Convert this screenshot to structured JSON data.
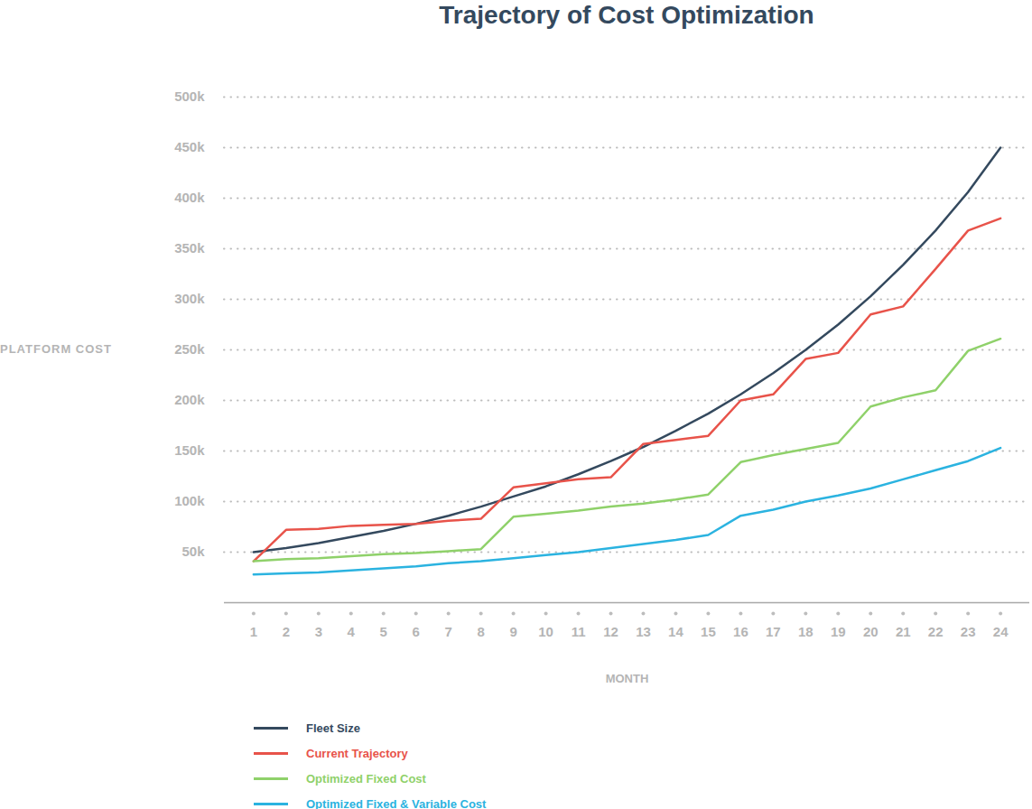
{
  "chart_data": {
    "type": "line",
    "title": "Trajectory of Cost Optimization",
    "y_label": "PLATFORM COST",
    "x_label": "MONTH",
    "x": [
      1,
      2,
      3,
      4,
      5,
      6,
      7,
      8,
      9,
      10,
      11,
      12,
      13,
      14,
      15,
      16,
      17,
      18,
      19,
      20,
      21,
      22,
      23,
      24
    ],
    "xlim": [
      0.1,
      24.9
    ],
    "xticks": [
      1,
      2,
      3,
      4,
      5,
      6,
      7,
      8,
      9,
      10,
      11,
      12,
      13,
      14,
      15,
      16,
      17,
      18,
      19,
      20,
      21,
      22,
      23,
      24
    ],
    "ylim": [
      0,
      500000
    ],
    "yticks": [
      {
        "value": 50000,
        "label": "50k"
      },
      {
        "value": 100000,
        "label": "100k"
      },
      {
        "value": 150000,
        "label": "150k"
      },
      {
        "value": 200000,
        "label": "200k"
      },
      {
        "value": 250000,
        "label": "250k"
      },
      {
        "value": 300000,
        "label": "300k"
      },
      {
        "value": 350000,
        "label": "350k"
      },
      {
        "value": 400000,
        "label": "400k"
      },
      {
        "value": 450000,
        "label": "450k"
      },
      {
        "value": 500000,
        "label": "500k"
      }
    ],
    "grid": true,
    "legend": "bottom",
    "series": [
      {
        "name": "Fleet Size",
        "color": "#34495e",
        "values": [
          50000,
          54000,
          59000,
          65000,
          71000,
          78000,
          86000,
          95000,
          105000,
          115000,
          127000,
          140000,
          154000,
          170000,
          187000,
          206000,
          227000,
          250000,
          275000,
          303000,
          334000,
          368000,
          406000,
          450000
        ]
      },
      {
        "name": "Current Trajectory",
        "color": "#e8534a",
        "values": [
          41000,
          72000,
          73000,
          76000,
          77000,
          78000,
          81000,
          83000,
          114000,
          118000,
          122000,
          124000,
          157000,
          161000,
          165000,
          200000,
          206000,
          241000,
          247000,
          285000,
          293000,
          330000,
          368000,
          380000
        ]
      },
      {
        "name": "Optimized Fixed Cost",
        "color": "#8fd16a",
        "values": [
          41000,
          43000,
          44000,
          46000,
          48000,
          49000,
          51000,
          53000,
          85000,
          88000,
          91000,
          95000,
          98000,
          102000,
          107000,
          139000,
          146000,
          152000,
          158000,
          194000,
          203000,
          210000,
          249000,
          261000
        ]
      },
      {
        "name": "Optimized Fixed & Variable Cost",
        "color": "#2bb3e0",
        "values": [
          28000,
          29000,
          30000,
          32000,
          34000,
          36000,
          39000,
          41000,
          44000,
          47000,
          50000,
          54000,
          58000,
          62000,
          67000,
          86000,
          92000,
          100000,
          106000,
          113000,
          122000,
          131000,
          140000,
          153000
        ]
      }
    ]
  }
}
